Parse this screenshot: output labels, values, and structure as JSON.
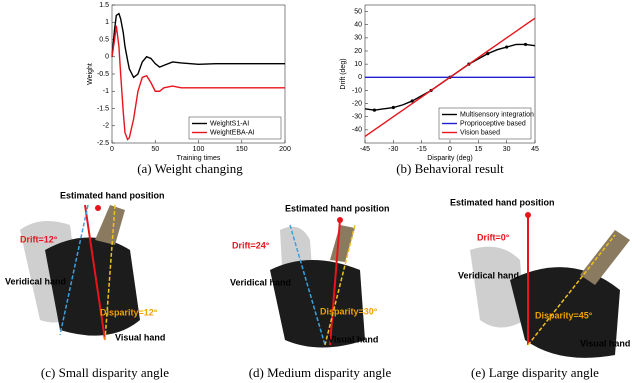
{
  "chart_data": [
    {
      "type": "line",
      "xlabel": "Training times",
      "ylabel": "Weight",
      "x": [
        0,
        3,
        5,
        8,
        10,
        13,
        15,
        18,
        20,
        25,
        30,
        35,
        40,
        45,
        50,
        55,
        60,
        70,
        80,
        100,
        120,
        150,
        200
      ],
      "series": [
        {
          "name": "WeightS1-AI",
          "color": "#000000",
          "values": [
            0,
            0.8,
            1.2,
            1.25,
            1.1,
            0.7,
            0.3,
            -0.1,
            -0.35,
            -0.6,
            -0.5,
            -0.15,
            0,
            -0.05,
            -0.2,
            -0.3,
            -0.25,
            -0.15,
            -0.18,
            -0.22,
            -0.2,
            -0.2,
            -0.2
          ]
        },
        {
          "name": "WeightEBA-AI",
          "color": "#e8141c",
          "values": [
            0,
            0.5,
            0.9,
            0.3,
            -0.5,
            -1.6,
            -2.2,
            -2.4,
            -2.35,
            -1.8,
            -1.0,
            -0.6,
            -0.55,
            -0.75,
            -1.0,
            -1.0,
            -0.9,
            -0.85,
            -0.9,
            -0.9,
            -0.9,
            -0.9,
            -0.9
          ]
        }
      ],
      "xlim": [
        0,
        200
      ],
      "xticks": [
        0,
        50,
        100,
        150,
        200
      ],
      "ylim": [
        -2.5,
        1.5
      ],
      "yticks": [
        -2.5,
        -2,
        -1.5,
        -1,
        -0.5,
        0,
        0.5,
        1,
        1.5
      ],
      "legend": "lower right"
    },
    {
      "type": "line",
      "xlabel": "Disparity (deg)",
      "ylabel": "Drift (deg)",
      "x": [
        -45,
        -40,
        -35,
        -30,
        -25,
        -20,
        -15,
        -10,
        -5,
        0,
        5,
        10,
        15,
        20,
        25,
        30,
        35,
        40,
        45
      ],
      "series": [
        {
          "name": "Multisensory integration",
          "color": "#000000",
          "markers": true,
          "values": [
            -24,
            -25,
            -24,
            -23,
            -21,
            -18,
            -14,
            -10,
            -5,
            0,
            5,
            10,
            14,
            18,
            21,
            23,
            25,
            25,
            24
          ]
        },
        {
          "name": "Proprioceptive based",
          "color": "#1f1fd0",
          "values": [
            0,
            0,
            0,
            0,
            0,
            0,
            0,
            0,
            0,
            0,
            0,
            0,
            0,
            0,
            0,
            0,
            0,
            0,
            0
          ]
        },
        {
          "name": "Vision based",
          "color": "#e8141c",
          "values": [
            -45,
            -40,
            -35,
            -30,
            -25,
            -20,
            -15,
            -10,
            -5,
            0,
            5,
            10,
            15,
            20,
            25,
            30,
            35,
            40,
            45
          ]
        }
      ],
      "xlim": [
        -45,
        45
      ],
      "xticks": [
        -45,
        -30,
        -15,
        0,
        15,
        30,
        45
      ],
      "ylim": [
        -50,
        55
      ],
      "yticks": [
        -40,
        -30,
        -20,
        -10,
        0,
        10,
        20,
        30,
        40,
        50
      ],
      "legend": "lower right"
    }
  ],
  "captions": [
    "(a)  Weight changing",
    "(b)  Behavioral result",
    "(c)  Small disparity angle",
    "(d)  Medium disparity angle",
    "(e)  Large disparity angle"
  ],
  "panels": [
    {
      "estimated": "Estimated hand position",
      "drift": "Drift=12°",
      "veridical": "Veridical hand",
      "disparity": "Disparity=12°",
      "visual": "Visual hand"
    },
    {
      "estimated": "Estimated hand position",
      "drift": "Drift=24°",
      "veridical": "Veridical hand",
      "disparity": "Disparity=30°",
      "visual": "Visual hand"
    },
    {
      "estimated": "Estimated hand position",
      "drift": "Drift=0°",
      "veridical": "Veridical hand",
      "disparity": "Disparity=45°",
      "visual": "Visual hand"
    }
  ]
}
